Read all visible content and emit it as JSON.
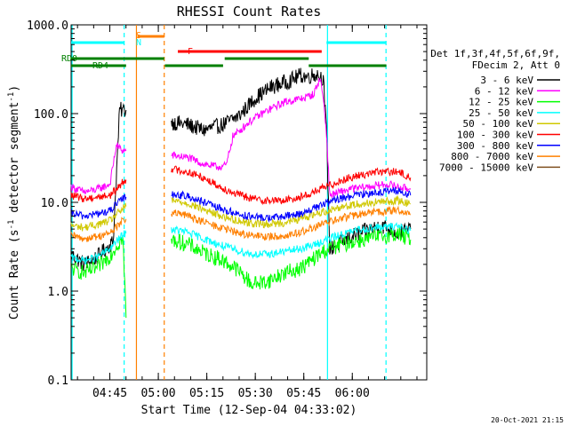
{
  "chart_data": {
    "type": "line",
    "title": "RHESSI Count Rates",
    "xlabel": "Start Time (12-Sep-04 04:33:02)",
    "ylabel_parts": [
      "Count Rate (s",
      "-1",
      " detector segment",
      "-1",
      ")"
    ],
    "x_axis": {
      "unit": "minutes after 04:33:02",
      "range": [
        0,
        110
      ],
      "ticks": [
        {
          "minutes": 11.97,
          "label": "04:45"
        },
        {
          "minutes": 26.97,
          "label": "05:00"
        },
        {
          "minutes": 41.97,
          "label": "05:15"
        },
        {
          "minutes": 56.97,
          "label": "05:30"
        },
        {
          "minutes": 71.97,
          "label": "05:45"
        },
        {
          "minutes": 86.97,
          "label": "06:00"
        }
      ]
    },
    "y_axis": {
      "scale": "log",
      "range": [
        0.1,
        1000
      ],
      "ticks": [
        {
          "value": 0.1,
          "label": "0.1"
        },
        {
          "value": 1,
          "label": "1.0"
        },
        {
          "value": 10,
          "label": "10.0"
        },
        {
          "value": 100,
          "label": "100.0"
        },
        {
          "value": 1000,
          "label": "1000.0"
        }
      ]
    },
    "legend_header": [
      "Det 1f,3f,4f,5f,6f,9f,",
      "FDecim 2, Att 0"
    ],
    "legend_placement": "right",
    "series": [
      {
        "name": "3 - 6 keV",
        "color": "#000000",
        "points": [
          [
            0,
            2.6
          ],
          [
            4,
            2.0
          ],
          [
            8,
            2.4
          ],
          [
            13,
            3.6
          ],
          [
            15,
            110
          ],
          [
            16,
            110
          ],
          [
            17,
            110
          ],
          [
            20,
            null
          ],
          [
            30,
            null
          ],
          [
            31,
            80
          ],
          [
            36,
            75
          ],
          [
            41,
            65
          ],
          [
            47,
            75
          ],
          [
            52,
            95
          ],
          [
            57,
            150
          ],
          [
            62,
            200
          ],
          [
            67,
            230
          ],
          [
            71,
            270
          ],
          [
            73,
            260
          ],
          [
            76,
            280
          ],
          [
            78,
            250
          ],
          [
            79,
            60
          ],
          [
            80,
            3.0
          ],
          [
            84,
            3.6
          ],
          [
            88,
            4.3
          ],
          [
            92,
            4.9
          ],
          [
            96,
            5.5
          ],
          [
            101,
            4.5
          ],
          [
            105,
            5.0
          ],
          [
            110,
            null
          ]
        ]
      },
      {
        "name": "6 - 12 keV",
        "color": "#ff00ff",
        "points": [
          [
            0,
            15
          ],
          [
            4,
            13
          ],
          [
            8,
            14
          ],
          [
            12,
            16
          ],
          [
            14,
            44
          ],
          [
            16,
            38
          ],
          [
            17,
            38
          ],
          [
            20,
            null
          ],
          [
            30,
            null
          ],
          [
            31,
            34
          ],
          [
            36,
            32
          ],
          [
            41,
            27
          ],
          [
            45,
            25
          ],
          [
            48,
            26
          ],
          [
            50,
            55
          ],
          [
            55,
            80
          ],
          [
            60,
            105
          ],
          [
            66,
            135
          ],
          [
            72,
            150
          ],
          [
            75,
            165
          ],
          [
            77,
            250
          ],
          [
            78,
            150
          ],
          [
            79,
            60
          ],
          [
            80,
            12
          ],
          [
            86,
            14
          ],
          [
            92,
            15
          ],
          [
            98,
            16
          ],
          [
            101,
            15
          ],
          [
            105,
            14
          ],
          [
            110,
            null
          ]
        ]
      },
      {
        "name": "12 - 25 keV",
        "color": "#00ff00",
        "points": [
          [
            0,
            1.8
          ],
          [
            4,
            1.6
          ],
          [
            8,
            1.8
          ],
          [
            12,
            2.5
          ],
          [
            14,
            3.2
          ],
          [
            16,
            4.0
          ],
          [
            17,
            0.5
          ],
          [
            20,
            null
          ],
          [
            30,
            null
          ],
          [
            31,
            3.8
          ],
          [
            36,
            3.4
          ],
          [
            41,
            2.7
          ],
          [
            46,
            2.3
          ],
          [
            51,
            1.8
          ],
          [
            56,
            1.2
          ],
          [
            61,
            1.3
          ],
          [
            66,
            1.6
          ],
          [
            71,
            1.8
          ],
          [
            75,
            2.3
          ],
          [
            78,
            2.8
          ],
          [
            82,
            3.2
          ],
          [
            87,
            3.6
          ],
          [
            92,
            3.9
          ],
          [
            97,
            4.2
          ],
          [
            101,
            4.4
          ],
          [
            105,
            3.8
          ],
          [
            110,
            null
          ]
        ]
      },
      {
        "name": "25 - 50 keV",
        "color": "#00ffff",
        "points": [
          [
            0,
            2.4
          ],
          [
            4,
            2.2
          ],
          [
            8,
            2.4
          ],
          [
            12,
            3.0
          ],
          [
            14,
            3.6
          ],
          [
            16,
            4.3
          ],
          [
            17,
            4.5
          ],
          [
            20,
            null
          ],
          [
            30,
            null
          ],
          [
            31,
            5.0
          ],
          [
            36,
            4.6
          ],
          [
            41,
            3.9
          ],
          [
            46,
            3.3
          ],
          [
            51,
            2.9
          ],
          [
            56,
            2.6
          ],
          [
            61,
            2.6
          ],
          [
            66,
            2.8
          ],
          [
            71,
            3.0
          ],
          [
            75,
            3.3
          ],
          [
            79,
            3.8
          ],
          [
            84,
            4.4
          ],
          [
            89,
            4.9
          ],
          [
            94,
            5.2
          ],
          [
            99,
            5.3
          ],
          [
            101,
            5.5
          ],
          [
            105,
            4.8
          ],
          [
            110,
            null
          ]
        ]
      },
      {
        "name": "50 - 100 keV",
        "color": "#d0c800",
        "points": [
          [
            0,
            5.5
          ],
          [
            4,
            5.2
          ],
          [
            8,
            5.6
          ],
          [
            12,
            6.2
          ],
          [
            14,
            7.3
          ],
          [
            16,
            8.5
          ],
          [
            17,
            9.0
          ],
          [
            20,
            null
          ],
          [
            30,
            null
          ],
          [
            31,
            10.5
          ],
          [
            36,
            9.8
          ],
          [
            41,
            8.3
          ],
          [
            46,
            7.1
          ],
          [
            51,
            6.3
          ],
          [
            56,
            5.8
          ],
          [
            61,
            5.7
          ],
          [
            66,
            5.9
          ],
          [
            71,
            6.5
          ],
          [
            75,
            7.3
          ],
          [
            79,
            8.0
          ],
          [
            84,
            9.0
          ],
          [
            89,
            9.6
          ],
          [
            94,
            10.0
          ],
          [
            99,
            10.3
          ],
          [
            101,
            10.5
          ],
          [
            105,
            9.6
          ],
          [
            110,
            null
          ]
        ]
      },
      {
        "name": "100 - 300 keV",
        "color": "#ff0000",
        "points": [
          [
            0,
            12
          ],
          [
            4,
            11
          ],
          [
            8,
            11.5
          ],
          [
            12,
            12
          ],
          [
            14,
            14
          ],
          [
            16,
            17
          ],
          [
            17,
            18
          ],
          [
            20,
            null
          ],
          [
            30,
            null
          ],
          [
            31,
            24
          ],
          [
            36,
            22
          ],
          [
            41,
            19
          ],
          [
            46,
            15
          ],
          [
            51,
            12.5
          ],
          [
            56,
            11
          ],
          [
            61,
            10.5
          ],
          [
            66,
            10.5
          ],
          [
            71,
            11.5
          ],
          [
            75,
            13
          ],
          [
            79,
            15
          ],
          [
            84,
            18
          ],
          [
            89,
            20
          ],
          [
            94,
            22
          ],
          [
            99,
            22
          ],
          [
            101,
            22
          ],
          [
            105,
            19
          ],
          [
            110,
            null
          ]
        ]
      },
      {
        "name": "300 - 800 keV",
        "color": "#0000ff",
        "points": [
          [
            0,
            7.5
          ],
          [
            4,
            7.0
          ],
          [
            8,
            7.4
          ],
          [
            12,
            8.0
          ],
          [
            14,
            9.5
          ],
          [
            16,
            11
          ],
          [
            17,
            11.5
          ],
          [
            20,
            null
          ],
          [
            30,
            null
          ],
          [
            31,
            12.5
          ],
          [
            36,
            11.7
          ],
          [
            41,
            10
          ],
          [
            46,
            8.5
          ],
          [
            51,
            7.5
          ],
          [
            56,
            6.8
          ],
          [
            61,
            6.7
          ],
          [
            66,
            6.9
          ],
          [
            71,
            7.5
          ],
          [
            75,
            8.5
          ],
          [
            79,
            9.8
          ],
          [
            84,
            11.2
          ],
          [
            89,
            12.2
          ],
          [
            94,
            13
          ],
          [
            99,
            13.3
          ],
          [
            101,
            13.5
          ],
          [
            105,
            12
          ],
          [
            110,
            null
          ]
        ]
      },
      {
        "name": "800 - 7000 keV",
        "color": "#ff8000",
        "points": [
          [
            0,
            4.2
          ],
          [
            4,
            3.9
          ],
          [
            8,
            4.1
          ],
          [
            12,
            4.5
          ],
          [
            14,
            5.3
          ],
          [
            16,
            6.2
          ],
          [
            17,
            6.5
          ],
          [
            20,
            null
          ],
          [
            30,
            null
          ],
          [
            31,
            7.6
          ],
          [
            36,
            7.1
          ],
          [
            41,
            6.0
          ],
          [
            46,
            5.2
          ],
          [
            51,
            4.6
          ],
          [
            56,
            4.2
          ],
          [
            61,
            4.1
          ],
          [
            66,
            4.2
          ],
          [
            71,
            4.6
          ],
          [
            75,
            5.2
          ],
          [
            79,
            5.9
          ],
          [
            84,
            6.7
          ],
          [
            89,
            7.3
          ],
          [
            94,
            7.8
          ],
          [
            99,
            8.0
          ],
          [
            101,
            8.2
          ],
          [
            105,
            7.3
          ],
          [
            110,
            null
          ]
        ]
      },
      {
        "name": "7000 - 15000 keV",
        "color": "#7f4f1f",
        "points": []
      }
    ],
    "time_bars": [
      {
        "label": "",
        "color": "#00ffff",
        "segments": [
          [
            0,
            16.4
          ],
          [
            79,
            97.5
          ]
        ],
        "level": 1
      },
      {
        "label": "S",
        "color": "#ff8000",
        "segments": [
          [
            20.5,
            28.8
          ]
        ],
        "level": 2
      },
      {
        "label": "N",
        "color": "#00ffff",
        "segments": [],
        "level": 3
      },
      {
        "label": "F",
        "color": "#ff0000",
        "segments": [
          [
            33,
            77.5
          ]
        ],
        "level": 4
      },
      {
        "label": "RD0",
        "color": "#008000",
        "segments": [
          [
            0,
            28.8
          ],
          [
            47.5,
            73.5
          ]
        ],
        "level": 5
      },
      {
        "label": "RD4",
        "color": "#008000",
        "segments": [
          [
            0,
            17
          ],
          [
            29,
            47
          ],
          [
            73.5,
            97.5
          ]
        ],
        "level": 6
      }
    ],
    "vertical_markers": [
      {
        "minutes": 0.3,
        "color": "#00ffff",
        "style": "solid"
      },
      {
        "minutes": 16.4,
        "color": "#00ffff",
        "style": "dashed"
      },
      {
        "minutes": 20.2,
        "color": "#ff8000",
        "style": "solid"
      },
      {
        "minutes": 28.8,
        "color": "#ff8000",
        "style": "dashed"
      },
      {
        "minutes": 79.3,
        "color": "#00ffff",
        "style": "solid"
      },
      {
        "minutes": 97.4,
        "color": "#00ffff",
        "style": "dashed"
      }
    ],
    "grid": false
  },
  "footer": {
    "timestamp": "20-Oct-2021 21:15"
  }
}
